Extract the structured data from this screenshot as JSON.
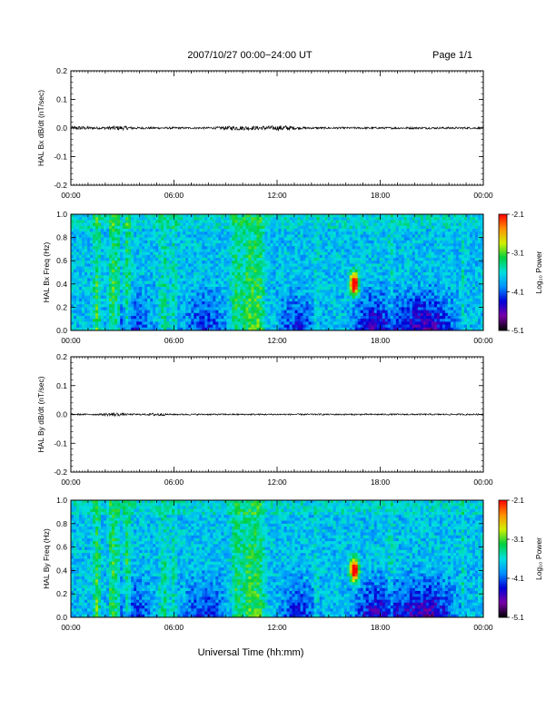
{
  "header": {
    "title": "2007/10/27  00:00−24:00 UT",
    "page": "Page 1/1"
  },
  "footer": {
    "xlabel": "Universal Time (hh:mm)"
  },
  "colors": {
    "line": "#000000",
    "colormap": [
      "#000000",
      "#7a00a8",
      "#0000d8",
      "#0090ff",
      "#00e0e0",
      "#00d040",
      "#d0f000",
      "#ff9000",
      "#ff0000"
    ]
  },
  "chart_data": [
    {
      "type": "line",
      "ylabel": "HAL Bx dB/dt (nT/sec)",
      "ylim": [
        -0.2,
        0.2
      ],
      "yticks": [
        "0.2",
        "0.1",
        "0.0",
        "-0.1",
        "-0.2"
      ],
      "xticks": [
        "00:00",
        "06:00",
        "12:00",
        "18:00",
        "00:00"
      ],
      "xlim_hours": [
        0,
        24
      ],
      "series": [
        {
          "values_approx": "noise around 0.0, amplitude about ±0.005 nT/sec, slightly larger near 00:00, 03:00, 09:30 and 11:30"
        }
      ]
    },
    {
      "type": "heatmap",
      "ylabel": "HAL Bx Freq (Hz)",
      "ylim": [
        0.0,
        1.0
      ],
      "yticks": [
        "1.0",
        "0.8",
        "0.6",
        "0.4",
        "0.2",
        "0.0"
      ],
      "xticks": [
        "00:00",
        "06:00",
        "12:00",
        "18:00",
        "00:00"
      ],
      "colorbar": {
        "label": "Log₁₀ Power",
        "ticks": [
          "-2.1",
          "-3.1",
          "-4.1",
          "-5.1"
        ],
        "range": [
          -5.1,
          -2.1
        ]
      },
      "features": [
        {
          "time_hours": 16.5,
          "freq_hz": [
            0.3,
            0.5
          ],
          "log_power": -2.3
        },
        {
          "time_hours": 2.5,
          "freq_hz": [
            0.0,
            0.9
          ],
          "log_power": -3.3
        },
        {
          "time_hours": 10.3,
          "freq_hz": [
            0.0,
            1.0
          ],
          "log_power": -3.4
        }
      ]
    },
    {
      "type": "line",
      "ylabel": "HAL By dB/dt (nT/sec)",
      "ylim": [
        -0.2,
        0.2
      ],
      "yticks": [
        "0.2",
        "0.1",
        "0.0",
        "-0.1",
        "-0.2"
      ],
      "xticks": [
        "00:00",
        "06:00",
        "12:00",
        "18:00",
        "00:00"
      ],
      "xlim_hours": [
        0,
        24
      ],
      "series": [
        {
          "values_approx": "noise around 0.0, amplitude about ±0.004 nT/sec"
        }
      ]
    },
    {
      "type": "heatmap",
      "ylabel": "HAL By Freq (Hz)",
      "ylim": [
        0.0,
        1.0
      ],
      "yticks": [
        "1.0",
        "0.8",
        "0.6",
        "0.4",
        "0.2",
        "0.0"
      ],
      "xticks": [
        "00:00",
        "06:00",
        "12:00",
        "18:00",
        "00:00"
      ],
      "colorbar": {
        "label": "Log₁₀ Power",
        "ticks": [
          "-2.1",
          "-3.1",
          "-4.1",
          "-5.1"
        ],
        "range": [
          -5.1,
          -2.1
        ]
      },
      "features": [
        {
          "time_hours": 16.5,
          "freq_hz": [
            0.3,
            0.5
          ],
          "log_power": -2.3
        },
        {
          "time_hours": 2.5,
          "freq_hz": [
            0.0,
            0.9
          ],
          "log_power": -3.3
        },
        {
          "time_hours": 10.3,
          "freq_hz": [
            0.0,
            1.0
          ],
          "log_power": -3.4
        }
      ]
    }
  ]
}
